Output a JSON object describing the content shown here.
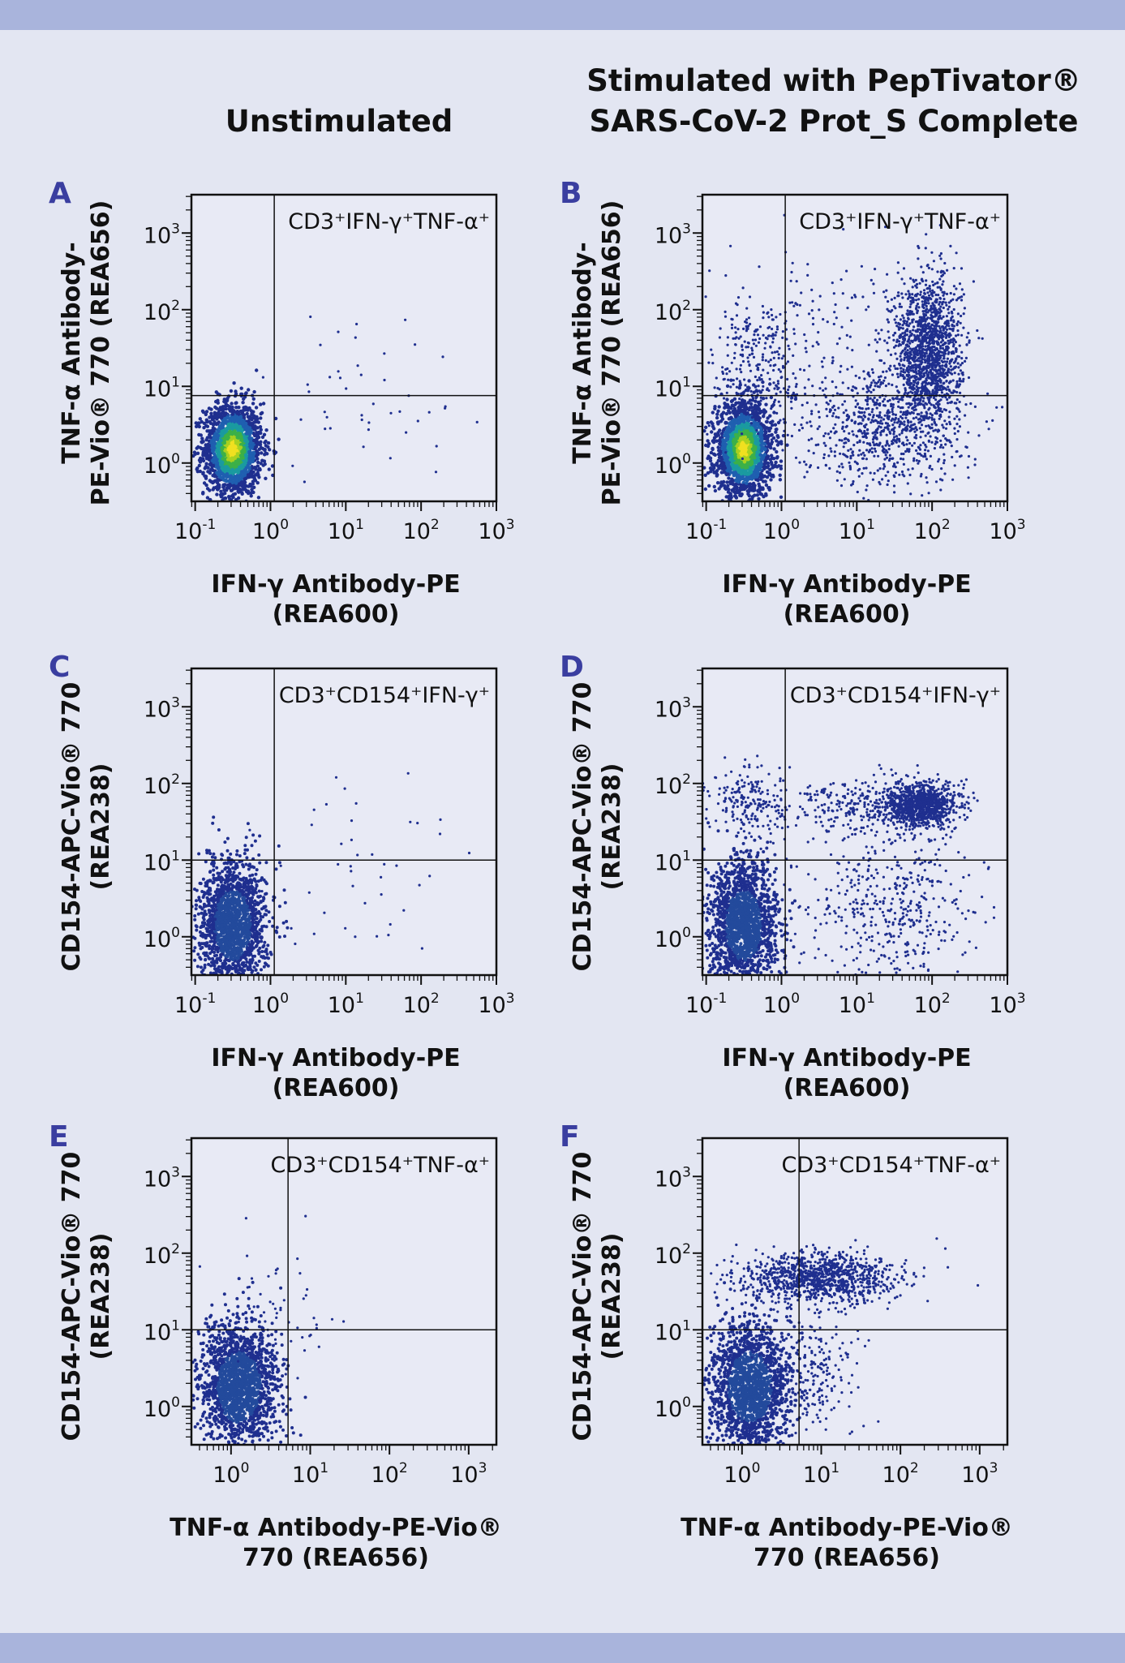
{
  "colors": {
    "background": "#e3e6f2",
    "band": "#a9b4dc",
    "panel_letter": "#3a3ea0",
    "dots": "#1f2f8f",
    "text": "#111111"
  },
  "column_titles": {
    "left": {
      "lines": [
        "Unstimulated"
      ]
    },
    "right": {
      "lines": [
        "Stimulated with PepTivator®",
        "SARS-CoV-2 Prot_S Complete"
      ]
    }
  },
  "chart_data": [
    {
      "id": "A",
      "type": "scatter",
      "letter": "A",
      "quadrant_label": "CD3⁺IFN-γ⁺TNF-α⁺",
      "xlabel_lines": [
        "IFN-γ Antibody-PE",
        "(REA600)"
      ],
      "ylabel_lines": [
        "TNF-α Antibody-",
        "PE-Vio® 770 (REA656)"
      ],
      "xlim": [
        -1.05,
        3.0
      ],
      "ylim": [
        -0.5,
        3.5
      ],
      "x_ticks": [
        {
          "v": -1,
          "base": "10",
          "exp": "-1"
        },
        {
          "v": 0,
          "base": "10",
          "exp": "0"
        },
        {
          "v": 1,
          "base": "10",
          "exp": "1"
        },
        {
          "v": 2,
          "base": "10",
          "exp": "2"
        },
        {
          "v": 3,
          "base": "10",
          "exp": "3"
        }
      ],
      "y_ticks": [
        {
          "v": 0,
          "base": "10",
          "exp": "0"
        },
        {
          "v": 1,
          "base": "10",
          "exp": "1"
        },
        {
          "v": 2,
          "base": "10",
          "exp": "2"
        },
        {
          "v": 3,
          "base": "10",
          "exp": "3"
        }
      ],
      "gate": {
        "x": 0.05,
        "y": 0.88
      },
      "populations": [
        {
          "cx": -0.5,
          "cy": 0.18,
          "sx": 0.19,
          "sy": 0.3,
          "n": 1800,
          "density": true
        },
        {
          "cx": 1.2,
          "cy": 0.9,
          "sx": 0.7,
          "sy": 0.6,
          "n": 45
        }
      ]
    },
    {
      "id": "B",
      "type": "scatter",
      "letter": "B",
      "quadrant_label": "CD3⁺IFN-γ⁺TNF-α⁺",
      "xlabel_lines": [
        "IFN-γ Antibody-PE",
        "(REA600)"
      ],
      "ylabel_lines": [
        "TNF-α Antibody-",
        "PE-Vio® 770 (REA656)"
      ],
      "xlim": [
        -1.05,
        3.0
      ],
      "ylim": [
        -0.5,
        3.5
      ],
      "x_ticks": [
        {
          "v": -1,
          "base": "10",
          "exp": "-1"
        },
        {
          "v": 0,
          "base": "10",
          "exp": "0"
        },
        {
          "v": 1,
          "base": "10",
          "exp": "1"
        },
        {
          "v": 2,
          "base": "10",
          "exp": "2"
        },
        {
          "v": 3,
          "base": "10",
          "exp": "3"
        }
      ],
      "y_ticks": [
        {
          "v": 0,
          "base": "10",
          "exp": "0"
        },
        {
          "v": 1,
          "base": "10",
          "exp": "1"
        },
        {
          "v": 2,
          "base": "10",
          "exp": "2"
        },
        {
          "v": 3,
          "base": "10",
          "exp": "3"
        }
      ],
      "gate": {
        "x": 0.05,
        "y": 0.88
      },
      "populations": [
        {
          "cx": -0.5,
          "cy": 0.18,
          "sx": 0.19,
          "sy": 0.3,
          "n": 1800,
          "density": true
        },
        {
          "cx": 1.95,
          "cy": 1.45,
          "sx": 0.22,
          "sy": 0.5,
          "n": 1500
        },
        {
          "cx": 1.3,
          "cy": 0.45,
          "sx": 0.55,
          "sy": 0.38,
          "n": 700
        },
        {
          "cx": -0.3,
          "cy": 1.3,
          "sx": 0.3,
          "sy": 0.45,
          "n": 250
        },
        {
          "cx": 0.8,
          "cy": 1.5,
          "sx": 0.9,
          "sy": 0.6,
          "n": 200
        }
      ]
    },
    {
      "id": "C",
      "type": "scatter",
      "letter": "C",
      "quadrant_label": "CD3⁺CD154⁺IFN-γ⁺",
      "xlabel_lines": [
        "IFN-γ Antibody-PE",
        "(REA600)"
      ],
      "ylabel_lines": [
        "CD154-APC-Vio® 770",
        "(REA238)"
      ],
      "xlim": [
        -1.05,
        3.0
      ],
      "ylim": [
        -0.5,
        3.5
      ],
      "x_ticks": [
        {
          "v": -1,
          "base": "10",
          "exp": "-1"
        },
        {
          "v": 0,
          "base": "10",
          "exp": "0"
        },
        {
          "v": 1,
          "base": "10",
          "exp": "1"
        },
        {
          "v": 2,
          "base": "10",
          "exp": "2"
        },
        {
          "v": 3,
          "base": "10",
          "exp": "3"
        }
      ],
      "y_ticks": [
        {
          "v": 0,
          "base": "10",
          "exp": "0"
        },
        {
          "v": 1,
          "base": "10",
          "exp": "1"
        },
        {
          "v": 2,
          "base": "10",
          "exp": "2"
        },
        {
          "v": 3,
          "base": "10",
          "exp": "3"
        }
      ],
      "gate": {
        "x": 0.05,
        "y": 1.0
      },
      "populations": [
        {
          "cx": -0.5,
          "cy": 0.15,
          "sx": 0.22,
          "sy": 0.42,
          "n": 1800
        },
        {
          "cx": 1.1,
          "cy": 0.8,
          "sx": 0.8,
          "sy": 0.7,
          "n": 45
        }
      ]
    },
    {
      "id": "D",
      "type": "scatter",
      "letter": "D",
      "quadrant_label": "CD3⁺CD154⁺IFN-γ⁺",
      "xlabel_lines": [
        "IFN-γ Antibody-PE",
        "(REA600)"
      ],
      "ylabel_lines": [
        "CD154-APC-Vio® 770",
        "(REA238)"
      ],
      "xlim": [
        -1.05,
        3.0
      ],
      "ylim": [
        -0.5,
        3.5
      ],
      "x_ticks": [
        {
          "v": -1,
          "base": "10",
          "exp": "-1"
        },
        {
          "v": 0,
          "base": "10",
          "exp": "0"
        },
        {
          "v": 1,
          "base": "10",
          "exp": "1"
        },
        {
          "v": 2,
          "base": "10",
          "exp": "2"
        },
        {
          "v": 3,
          "base": "10",
          "exp": "3"
        }
      ],
      "y_ticks": [
        {
          "v": 0,
          "base": "10",
          "exp": "0"
        },
        {
          "v": 1,
          "base": "10",
          "exp": "1"
        },
        {
          "v": 2,
          "base": "10",
          "exp": "2"
        },
        {
          "v": 3,
          "base": "10",
          "exp": "3"
        }
      ],
      "gate": {
        "x": 0.05,
        "y": 1.0
      },
      "populations": [
        {
          "cx": -0.5,
          "cy": 0.15,
          "sx": 0.22,
          "sy": 0.42,
          "n": 1800
        },
        {
          "cx": 1.85,
          "cy": 1.72,
          "sx": 0.25,
          "sy": 0.14,
          "n": 1000
        },
        {
          "cx": -0.4,
          "cy": 1.75,
          "sx": 0.28,
          "sy": 0.22,
          "n": 200
        },
        {
          "cx": 1.0,
          "cy": 1.7,
          "sx": 0.5,
          "sy": 0.2,
          "n": 250
        },
        {
          "cx": 1.5,
          "cy": 0.4,
          "sx": 0.55,
          "sy": 0.5,
          "n": 450
        }
      ]
    },
    {
      "id": "E",
      "type": "scatter",
      "letter": "E",
      "quadrant_label": "CD3⁺CD154⁺TNF-α⁺",
      "xlabel_lines": [
        "TNF-α Antibody-PE-Vio®",
        "770 (REA656)"
      ],
      "ylabel_lines": [
        "CD154-APC-Vio® 770",
        "(REA238)"
      ],
      "xlim": [
        -0.5,
        3.35
      ],
      "ylim": [
        -0.5,
        3.5
      ],
      "x_ticks": [
        {
          "v": 0,
          "base": "10",
          "exp": "0"
        },
        {
          "v": 1,
          "base": "10",
          "exp": "1"
        },
        {
          "v": 2,
          "base": "10",
          "exp": "2"
        },
        {
          "v": 3,
          "base": "10",
          "exp": "3"
        }
      ],
      "y_ticks": [
        {
          "v": 0,
          "base": "10",
          "exp": "0"
        },
        {
          "v": 1,
          "base": "10",
          "exp": "1"
        },
        {
          "v": 2,
          "base": "10",
          "exp": "2"
        },
        {
          "v": 3,
          "base": "10",
          "exp": "3"
        }
      ],
      "gate": {
        "x": 0.72,
        "y": 1.0
      },
      "populations": [
        {
          "cx": 0.1,
          "cy": 0.25,
          "sx": 0.25,
          "sy": 0.42,
          "n": 1800
        },
        {
          "cx": 0.6,
          "cy": 1.2,
          "sx": 0.35,
          "sy": 0.45,
          "n": 60
        }
      ]
    },
    {
      "id": "F",
      "type": "scatter",
      "letter": "F",
      "quadrant_label": "CD3⁺CD154⁺TNF-α⁺",
      "xlabel_lines": [
        "TNF-α Antibody-PE-Vio®",
        "770 (REA656)"
      ],
      "ylabel_lines": [
        "CD154-APC-Vio® 770",
        "(REA238)"
      ],
      "xlim": [
        -0.5,
        3.35
      ],
      "ylim": [
        -0.5,
        3.5
      ],
      "x_ticks": [
        {
          "v": 0,
          "base": "10",
          "exp": "0"
        },
        {
          "v": 1,
          "base": "10",
          "exp": "1"
        },
        {
          "v": 2,
          "base": "10",
          "exp": "2"
        },
        {
          "v": 3,
          "base": "10",
          "exp": "3"
        }
      ],
      "y_ticks": [
        {
          "v": 0,
          "base": "10",
          "exp": "0"
        },
        {
          "v": 1,
          "base": "10",
          "exp": "1"
        },
        {
          "v": 2,
          "base": "10",
          "exp": "2"
        },
        {
          "v": 3,
          "base": "10",
          "exp": "3"
        }
      ],
      "gate": {
        "x": 0.72,
        "y": 1.0
      },
      "populations": [
        {
          "cx": 0.1,
          "cy": 0.25,
          "sx": 0.25,
          "sy": 0.42,
          "n": 1800
        },
        {
          "cx": 0.95,
          "cy": 1.68,
          "sx": 0.48,
          "sy": 0.16,
          "n": 1100
        },
        {
          "cx": 0.9,
          "cy": 0.5,
          "sx": 0.3,
          "sy": 0.45,
          "n": 220
        }
      ]
    }
  ]
}
